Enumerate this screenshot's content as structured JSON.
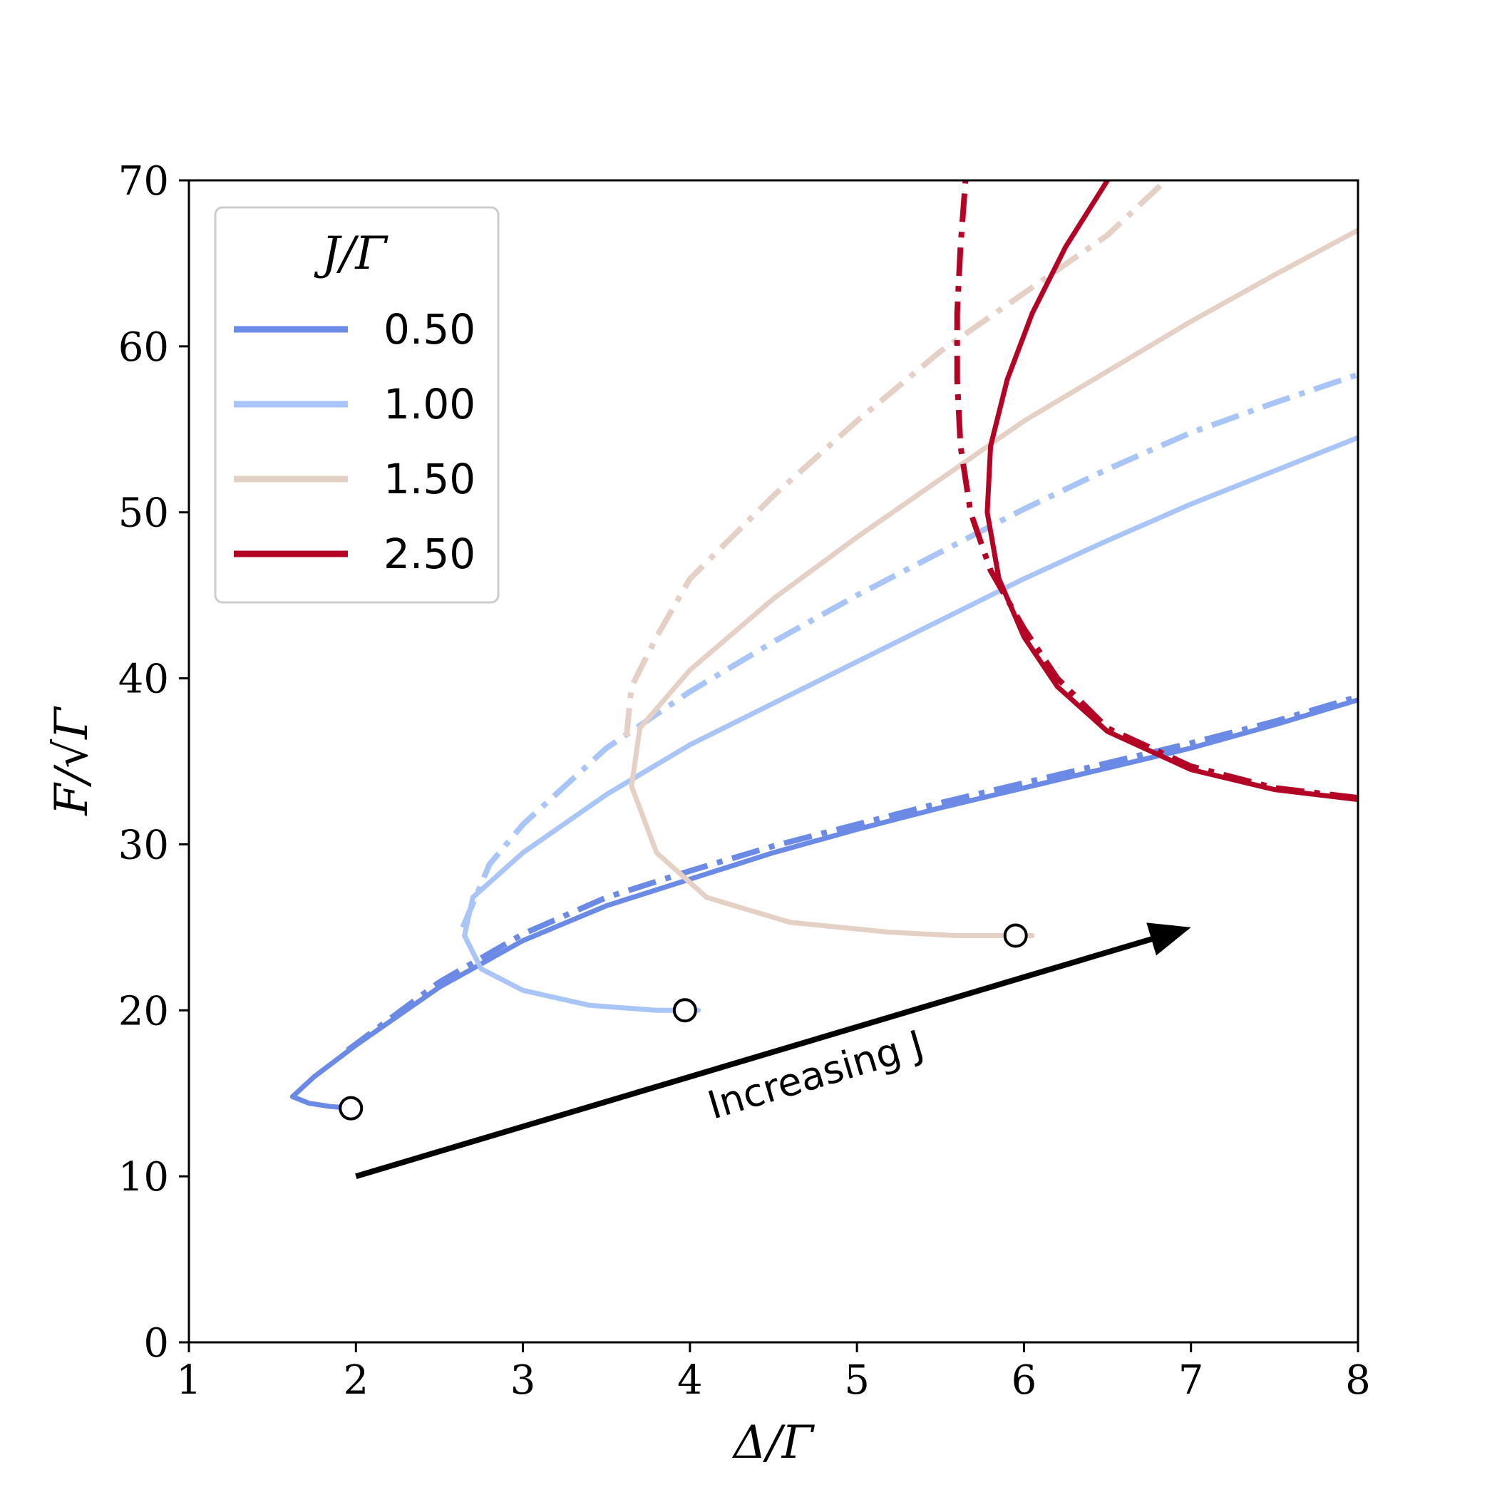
{
  "chart_data": {
    "type": "line",
    "xlabel": "Δ/Γ",
    "ylabel": "F/√Γ",
    "xlim": [
      1,
      8
    ],
    "ylim": [
      0,
      70
    ],
    "xticks": [
      "1",
      "2",
      "3",
      "4",
      "5",
      "6",
      "7",
      "8"
    ],
    "yticks": [
      "0",
      "10",
      "20",
      "30",
      "40",
      "50",
      "60",
      "70"
    ],
    "grid": false,
    "legend": {
      "title": "J/Γ",
      "placement": "top-left"
    },
    "annotation": {
      "text": "Increasing J",
      "arrow_from": [
        2.0,
        10.0
      ],
      "arrow_to": [
        7.0,
        25.0
      ]
    },
    "series": [
      {
        "name": "0.50",
        "color": "#6a8ae6",
        "solid": [
          [
            1.98,
            14.1
          ],
          [
            1.85,
            14.2
          ],
          [
            1.72,
            14.4
          ],
          [
            1.62,
            14.8
          ],
          [
            1.75,
            16.0
          ],
          [
            2.0,
            17.9
          ],
          [
            2.5,
            21.4
          ],
          [
            3.0,
            24.2
          ],
          [
            3.5,
            26.3
          ],
          [
            4.0,
            27.9
          ],
          [
            4.5,
            29.5
          ],
          [
            5.0,
            30.9
          ],
          [
            5.5,
            32.2
          ],
          [
            6.0,
            33.4
          ],
          [
            6.5,
            34.6
          ],
          [
            7.0,
            35.8
          ],
          [
            7.5,
            37.2
          ],
          [
            8.0,
            38.7
          ]
        ],
        "dashdot": [
          [
            1.95,
            17.6
          ],
          [
            2.5,
            21.7
          ],
          [
            3.0,
            24.6
          ],
          [
            3.5,
            26.8
          ],
          [
            4.0,
            28.4
          ],
          [
            4.5,
            29.9
          ],
          [
            5.0,
            31.2
          ],
          [
            5.5,
            32.5
          ],
          [
            6.0,
            33.7
          ],
          [
            6.5,
            34.9
          ],
          [
            7.0,
            36.1
          ],
          [
            7.5,
            37.4
          ],
          [
            8.0,
            38.9
          ]
        ]
      },
      {
        "name": "1.00",
        "color": "#a9c5f7",
        "solid": [
          [
            4.05,
            20.0
          ],
          [
            3.8,
            20.0
          ],
          [
            3.4,
            20.3
          ],
          [
            3.0,
            21.2
          ],
          [
            2.75,
            22.5
          ],
          [
            2.65,
            24.5
          ],
          [
            2.7,
            26.8
          ],
          [
            3.0,
            29.5
          ],
          [
            3.5,
            33.0
          ],
          [
            4.0,
            36.0
          ],
          [
            4.5,
            38.5
          ],
          [
            5.0,
            41.0
          ],
          [
            5.5,
            43.5
          ],
          [
            6.0,
            46.0
          ],
          [
            6.5,
            48.3
          ],
          [
            7.0,
            50.5
          ],
          [
            7.5,
            52.5
          ],
          [
            8.0,
            54.5
          ]
        ],
        "dashdot": [
          [
            2.64,
            25.0
          ],
          [
            2.8,
            28.8
          ],
          [
            3.0,
            31.2
          ],
          [
            3.5,
            35.8
          ],
          [
            4.0,
            39.2
          ],
          [
            4.5,
            42.2
          ],
          [
            5.0,
            45.0
          ],
          [
            5.5,
            47.6
          ],
          [
            6.0,
            50.2
          ],
          [
            6.5,
            52.6
          ],
          [
            7.0,
            54.8
          ],
          [
            7.5,
            56.6
          ],
          [
            8.0,
            58.3
          ]
        ]
      },
      {
        "name": "1.50",
        "color": "#e5d0c6",
        "solid": [
          [
            6.05,
            24.5
          ],
          [
            5.6,
            24.5
          ],
          [
            5.2,
            24.7
          ],
          [
            4.6,
            25.3
          ],
          [
            4.1,
            26.8
          ],
          [
            3.8,
            29.5
          ],
          [
            3.65,
            33.5
          ],
          [
            3.7,
            37.0
          ],
          [
            4.0,
            40.5
          ],
          [
            4.5,
            44.8
          ],
          [
            5.0,
            48.5
          ],
          [
            5.5,
            52.0
          ],
          [
            6.0,
            55.5
          ],
          [
            6.5,
            58.5
          ],
          [
            7.0,
            61.5
          ],
          [
            7.5,
            64.3
          ],
          [
            8.0,
            67.0
          ]
        ],
        "dashdot": [
          [
            3.62,
            36.5
          ],
          [
            3.65,
            39.5
          ],
          [
            3.8,
            42.5
          ],
          [
            4.0,
            46.0
          ],
          [
            4.5,
            51.0
          ],
          [
            5.0,
            55.5
          ],
          [
            5.5,
            59.7
          ],
          [
            6.0,
            63.2
          ],
          [
            6.5,
            66.7
          ],
          [
            6.85,
            70.0
          ]
        ]
      },
      {
        "name": "2.50",
        "color": "#b40426",
        "solid": [
          [
            8.0,
            32.7
          ],
          [
            7.5,
            33.3
          ],
          [
            7.0,
            34.5
          ],
          [
            6.5,
            36.8
          ],
          [
            6.2,
            39.5
          ],
          [
            6.0,
            42.5
          ],
          [
            5.85,
            46.0
          ],
          [
            5.78,
            50.0
          ],
          [
            5.8,
            54.0
          ],
          [
            5.9,
            58.0
          ],
          [
            6.05,
            62.0
          ],
          [
            6.25,
            66.0
          ],
          [
            6.5,
            70.0
          ]
        ],
        "dashdot": [
          [
            8.0,
            32.8
          ],
          [
            7.5,
            33.4
          ],
          [
            7.0,
            34.7
          ],
          [
            6.5,
            37.0
          ],
          [
            6.2,
            40.0
          ],
          [
            6.0,
            43.0
          ],
          [
            5.8,
            46.5
          ],
          [
            5.68,
            50.0
          ],
          [
            5.62,
            54.0
          ],
          [
            5.6,
            58.0
          ],
          [
            5.6,
            62.0
          ],
          [
            5.62,
            66.0
          ],
          [
            5.65,
            70.0
          ]
        ]
      }
    ],
    "markers": [
      {
        "x": 1.97,
        "y": 14.1
      },
      {
        "x": 3.97,
        "y": 20.0
      },
      {
        "x": 5.95,
        "y": 24.5
      }
    ]
  }
}
